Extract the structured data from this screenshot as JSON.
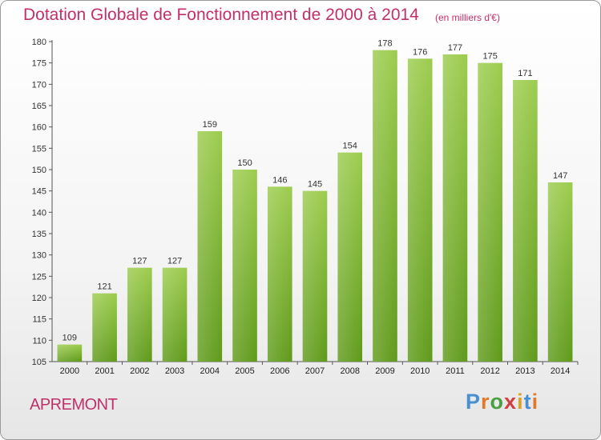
{
  "title": "Dotation Globale de Fonctionnement de 2000 à 2014",
  "unit": "(en milliers d'€)",
  "commune": "APREMONT",
  "logo": "Proxiti",
  "colors": {
    "title": "#c0306a",
    "bar_top": "#9ccc4e",
    "bar_bottom": "#5f9a1a",
    "logo_letters": [
      "#4a8fd0",
      "#e07a2a",
      "#4aa040",
      "#d04040",
      "#e0a020",
      "#4a8fd0",
      "#e07a2a"
    ]
  },
  "chart_data": {
    "type": "bar",
    "title": "Dotation Globale de Fonctionnement de 2000 à 2014",
    "categories": [
      "2000",
      "2001",
      "2002",
      "2003",
      "2004",
      "2005",
      "2006",
      "2007",
      "2008",
      "2009",
      "2010",
      "2011",
      "2012",
      "2013",
      "2014"
    ],
    "values": [
      109,
      121,
      127,
      127,
      159,
      150,
      146,
      145,
      154,
      178,
      176,
      177,
      175,
      171,
      147
    ],
    "xlabel": "",
    "ylabel": "",
    "ylim": [
      105,
      180
    ],
    "yticks": [
      105,
      110,
      115,
      120,
      125,
      130,
      135,
      140,
      145,
      150,
      155,
      160,
      165,
      170,
      175,
      180
    ],
    "grid": false,
    "data_labels": true
  }
}
